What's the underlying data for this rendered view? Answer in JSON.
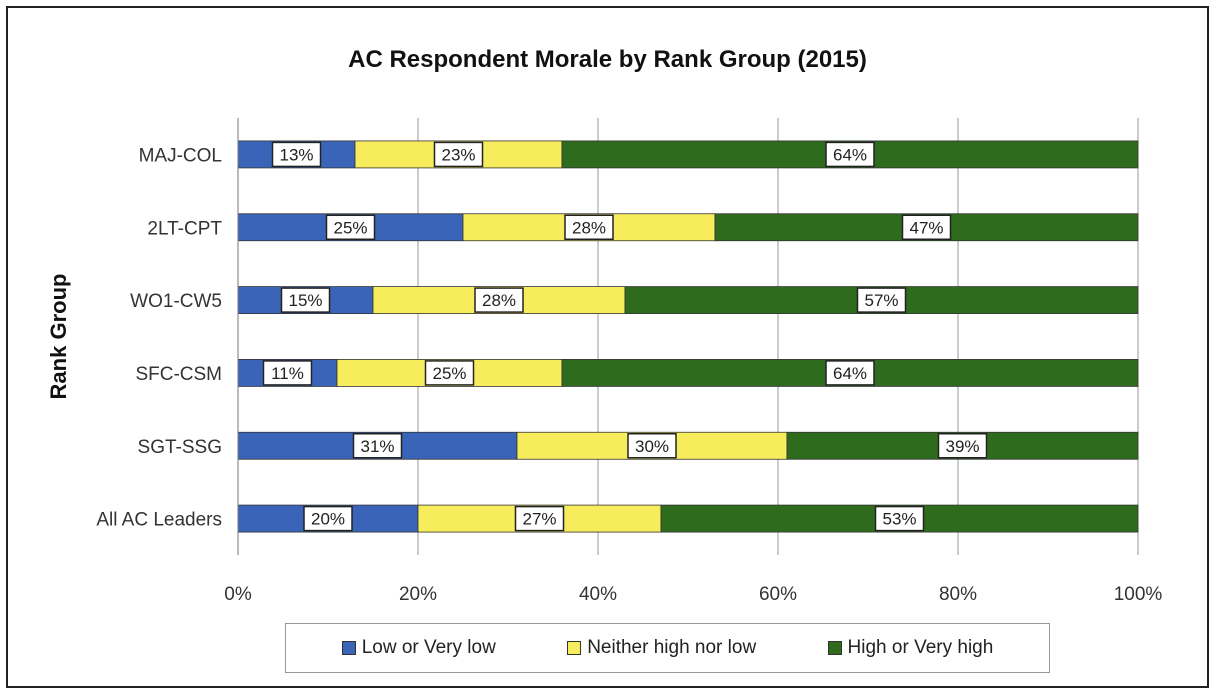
{
  "chart_data": {
    "type": "bar",
    "orientation": "horizontal",
    "stacked": true,
    "title": "AC Respondent Morale by Rank Group (2015)",
    "ylabel": "Rank Group",
    "xlabel": "",
    "categories": [
      "MAJ-COL",
      "2LT-CPT",
      "WO1-CW5",
      "SFC-CSM",
      "SGT-SSG",
      "All AC Leaders"
    ],
    "series": [
      {
        "name": "Low or Very low",
        "color": "#3a64b8",
        "values": [
          13,
          25,
          15,
          11,
          31,
          20
        ],
        "labels": [
          "13%",
          "25%",
          "15%",
          "11%",
          "31%",
          "20%"
        ]
      },
      {
        "name": "Neither high nor low",
        "color": "#f6ec5c",
        "values": [
          23,
          28,
          28,
          25,
          30,
          27
        ],
        "labels": [
          "23%",
          "28%",
          "28%",
          "25%",
          "30%",
          "27%"
        ]
      },
      {
        "name": "High or Very high",
        "color": "#2f6b1c",
        "values": [
          64,
          47,
          57,
          64,
          39,
          53
        ],
        "labels": [
          "64%",
          "47%",
          "57%",
          "64%",
          "39%",
          "53%"
        ]
      }
    ],
    "xlim": [
      0,
      100
    ],
    "xticks": [
      0,
      20,
      40,
      60,
      80,
      100
    ],
    "xtick_labels": [
      "0%",
      "20%",
      "40%",
      "60%",
      "80%",
      "100%"
    ],
    "grid": true,
    "legend_position": "bottom"
  }
}
